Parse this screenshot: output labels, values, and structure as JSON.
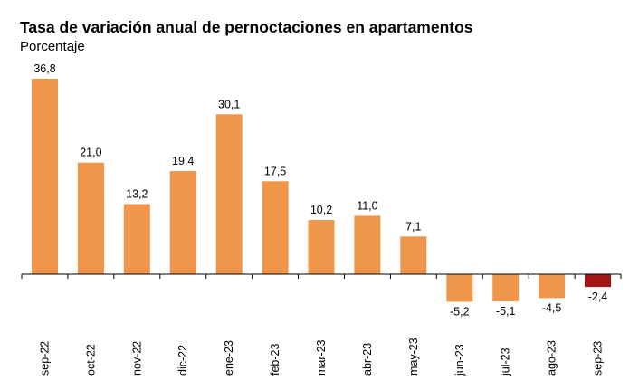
{
  "chart_data": {
    "type": "bar",
    "title": "Tasa de variación anual de pernoctaciones en apartamentos",
    "subtitle": "Porcentaje",
    "categories": [
      "sep-22",
      "oct-22",
      "nov-22",
      "dic-22",
      "ene-23",
      "feb-23",
      "mar-23",
      "abr-23",
      "may-23",
      "jun-23",
      "jul-23",
      "ago-23",
      "sep-23"
    ],
    "values": [
      36.8,
      21.0,
      13.2,
      19.4,
      30.1,
      17.5,
      10.2,
      11.0,
      7.1,
      -5.2,
      -5.1,
      -4.5,
      -2.4
    ],
    "value_labels": [
      "36,8",
      "21,0",
      "13,2",
      "19,4",
      "30,1",
      "17,5",
      "10,2",
      "11,0",
      "7,1",
      "-5,2",
      "-5,1",
      "-4,5",
      "-2,4"
    ],
    "ylim": [
      -6,
      40
    ],
    "grid": false,
    "legend": "none",
    "colors": {
      "bar": "#F0964A",
      "highlight": "#A31515",
      "axis": "#000000"
    },
    "highlight_index": 12
  }
}
